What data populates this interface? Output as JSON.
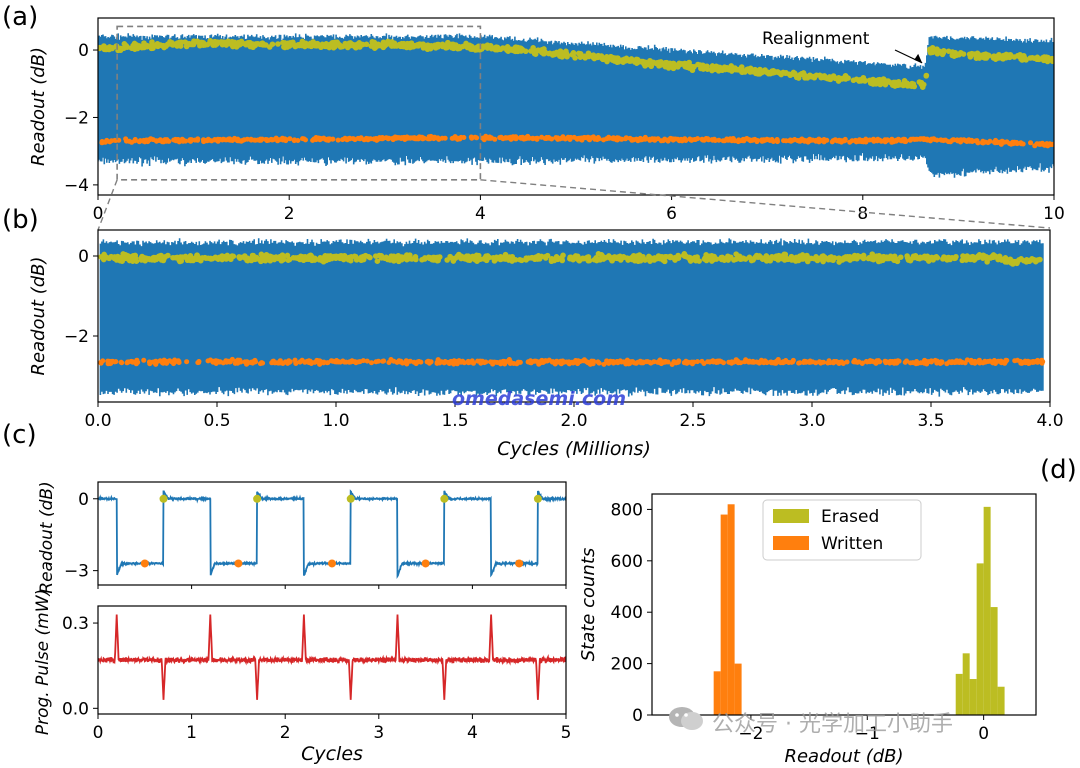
{
  "labels": {
    "a": "(a)",
    "b": "(b)",
    "c": "(c)",
    "d": "(d)"
  },
  "watermarks": {
    "site": "omedasemi.com",
    "channel": "公众号 · 光学加工小助手"
  },
  "colors": {
    "trace": "#1f77b4",
    "erased": "#bcbd22",
    "written": "#ff7f0e",
    "pulse": "#d62728",
    "inset": "#808080"
  },
  "chart_data": [
    {
      "id": "a",
      "type": "line",
      "ylabel": "Readout (dB)",
      "xlabel": "",
      "xlim": [
        0,
        10
      ],
      "ylim": [
        -4.3,
        0.95
      ],
      "xticks": [
        "0",
        "2",
        "4",
        "6",
        "8",
        "10"
      ],
      "yticks": [
        "0",
        "−2",
        "−4"
      ],
      "erased_level": {
        "x": [
          0,
          1,
          2,
          3,
          4,
          5,
          6,
          7,
          8,
          8.65,
          8.7,
          9,
          10
        ],
        "y": [
          0.05,
          0.2,
          0.15,
          0.15,
          0.1,
          -0.15,
          -0.45,
          -0.65,
          -0.9,
          -1.05,
          0.0,
          -0.15,
          -0.25
        ]
      },
      "written_level": {
        "x": [
          0,
          2,
          4,
          6,
          8,
          8.7,
          10
        ],
        "y": [
          -2.7,
          -2.65,
          -2.6,
          -2.65,
          -2.7,
          -2.65,
          -2.8
        ]
      },
      "envelope_top": {
        "x": [
          0,
          4,
          4.5,
          8.65,
          8.7,
          10
        ],
        "y": [
          0.4,
          0.4,
          0.3,
          -0.5,
          0.4,
          0.25
        ]
      },
      "envelope_bottom": {
        "x": [
          0,
          4,
          8.65,
          8.7,
          10
        ],
        "y": [
          -3.3,
          -3.3,
          -3.2,
          -3.7,
          -3.5
        ]
      },
      "inset_box": {
        "x": [
          0.2,
          4.0
        ],
        "y": [
          -3.85,
          0.7
        ]
      },
      "annotation": {
        "text": "Realignment",
        "point_x": 8.6,
        "point_y": -0.5
      }
    },
    {
      "id": "b",
      "type": "line",
      "ylabel": "Readout (dB)",
      "xlabel": "Cycles (Millions)",
      "xlim": [
        0,
        4
      ],
      "ylim": [
        -3.65,
        0.65
      ],
      "xticks": [
        "0.0",
        "0.5",
        "1.0",
        "1.5",
        "2.0",
        "2.5",
        "3.0",
        "3.5",
        "4.0"
      ],
      "yticks": [
        "0",
        "−2"
      ],
      "erased_level": -0.05,
      "written_level": -2.65,
      "envelope_top": 0.35,
      "envelope_bottom": -3.4
    },
    {
      "id": "c-top",
      "type": "line",
      "ylabel": "Readout (dB)",
      "xlim": [
        0,
        5
      ],
      "ylim": [
        -3.6,
        0.7
      ],
      "yticks": [
        "0",
        "−3"
      ],
      "high": 0.0,
      "low": -2.7,
      "erased_points": [
        0.7,
        1.7,
        2.7,
        3.7,
        4.7
      ],
      "written_points": [
        0.5,
        1.5,
        2.5,
        3.5,
        4.5
      ]
    },
    {
      "id": "c-bottom",
      "type": "line",
      "ylabel": "Prog. Pulse (mW)",
      "xlabel": "Cycles",
      "xlim": [
        0,
        5
      ],
      "ylim": [
        -0.02,
        0.36
      ],
      "xticks": [
        "0",
        "1",
        "2",
        "3",
        "4",
        "5"
      ],
      "yticks": [
        "0.0",
        "0.3"
      ],
      "baseline": 0.17,
      "positive_spikes": [
        0.2,
        1.2,
        2.2,
        3.2,
        4.2
      ],
      "negative_spikes": [
        0.7,
        1.7,
        2.7,
        3.7,
        4.7
      ],
      "positive_peak": 0.33,
      "negative_peak": 0.03
    },
    {
      "id": "d",
      "type": "bar",
      "ylabel": "State counts",
      "xlabel": "Readout (dB)",
      "xlim": [
        -2.85,
        0.45
      ],
      "ylim": [
        0,
        860
      ],
      "xticks": [
        "−2",
        "−1",
        "0"
      ],
      "yticks": [
        "0",
        "200",
        "400",
        "600",
        "800"
      ],
      "bin_width": 0.06,
      "legend": {
        "position": "upper-center",
        "entries": [
          "Erased",
          "Written"
        ]
      },
      "series": [
        {
          "name": "Erased",
          "bins": [
            -0.24,
            -0.18,
            -0.12,
            -0.06,
            0.0,
            0.06,
            0.12
          ],
          "counts": [
            160,
            240,
            140,
            590,
            810,
            420,
            110
          ]
        },
        {
          "name": "Written",
          "bins": [
            -2.32,
            -2.26,
            -2.2,
            -2.14
          ],
          "counts": [
            170,
            780,
            820,
            200
          ]
        }
      ]
    }
  ]
}
